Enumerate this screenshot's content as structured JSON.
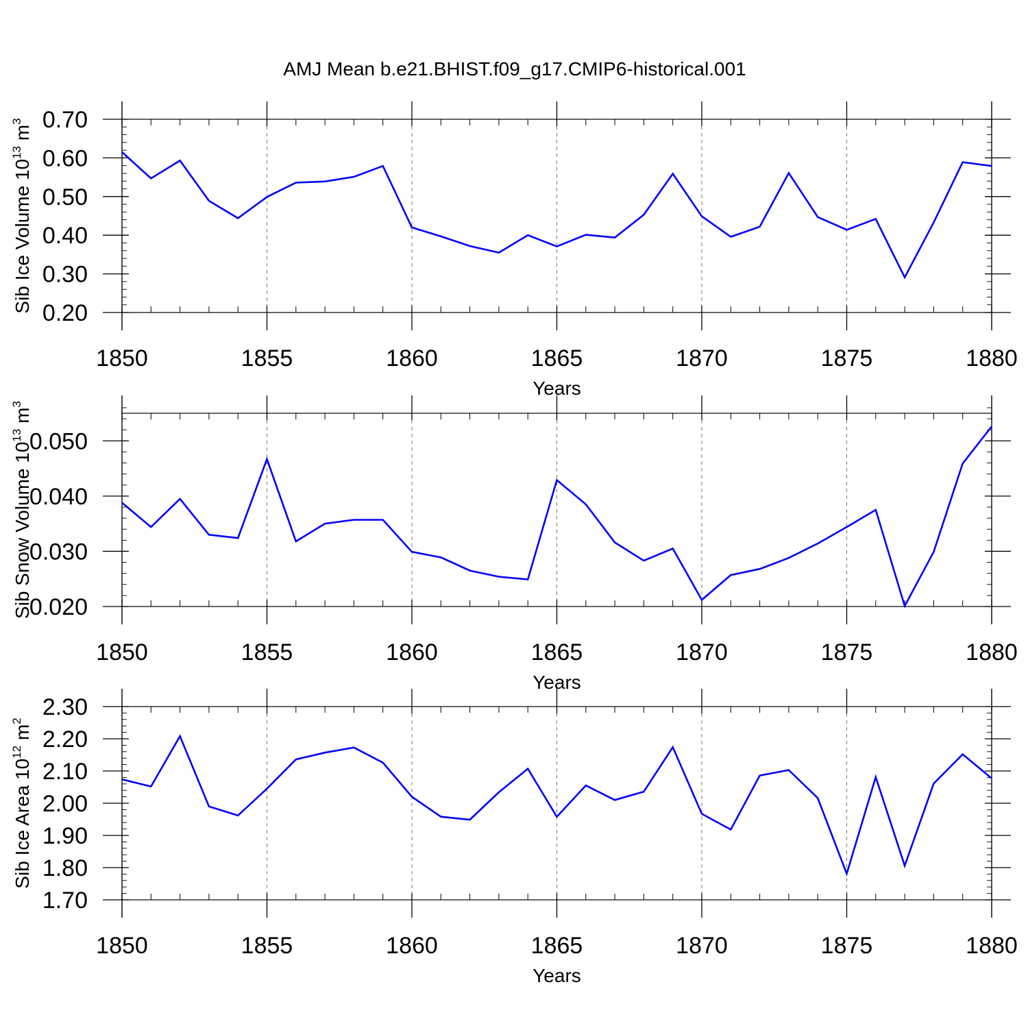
{
  "chart_data": [
    {
      "type": "line",
      "title": "AMJ Mean b.e21.BHIST.f09_g17.CMIP6-historical.001",
      "ylabel": {
        "base": "Sib Ice Volume 10",
        "exponent": "13",
        "unit": "m",
        "unit_exponent": "3"
      },
      "xlabel": "Years",
      "xlim": [
        1850,
        1880
      ],
      "ylim": [
        0.2,
        0.7
      ],
      "grid": "dashed vertical at major x ticks",
      "x_ticks": [
        1850,
        1855,
        1860,
        1865,
        1870,
        1875,
        1880
      ],
      "x_tick_labels": [
        "1850",
        "1855",
        "1860",
        "1865",
        "1870",
        "1875",
        "1880"
      ],
      "y_ticks": [
        0.2,
        0.3,
        0.4,
        0.5,
        0.6,
        0.7
      ],
      "y_tick_labels": [
        "0.20",
        "0.30",
        "0.40",
        "0.50",
        "0.60",
        "0.70"
      ],
      "y_minor_step": 0.02,
      "series": [
        {
          "name": "Sib Ice Volume",
          "color": "#0000ff",
          "x": [
            1850,
            1851,
            1852,
            1853,
            1854,
            1855,
            1856,
            1857,
            1858,
            1859,
            1860,
            1861,
            1862,
            1863,
            1864,
            1865,
            1866,
            1867,
            1868,
            1869,
            1870,
            1871,
            1872,
            1873,
            1874,
            1875,
            1876,
            1877,
            1878,
            1879,
            1880
          ],
          "values": [
            0.615,
            0.547,
            0.593,
            0.489,
            0.444,
            0.499,
            0.536,
            0.539,
            0.551,
            0.579,
            0.42,
            0.397,
            0.372,
            0.355,
            0.4,
            0.371,
            0.401,
            0.394,
            0.453,
            0.559,
            0.449,
            0.396,
            0.422,
            0.561,
            0.447,
            0.414,
            0.442,
            0.291,
            0.433,
            0.589,
            0.579
          ]
        }
      ]
    },
    {
      "type": "line",
      "ylabel": {
        "base": "Sib Snow Volume 10",
        "exponent": "13",
        "unit": "m",
        "unit_exponent": "3"
      },
      "xlabel": "Years",
      "xlim": [
        1850,
        1880
      ],
      "ylim": [
        0.02,
        0.055
      ],
      "grid": "dashed vertical at major x ticks",
      "x_ticks": [
        1850,
        1855,
        1860,
        1865,
        1870,
        1875,
        1880
      ],
      "x_tick_labels": [
        "1850",
        "1855",
        "1860",
        "1865",
        "1870",
        "1875",
        "1880"
      ],
      "y_ticks": [
        0.02,
        0.03,
        0.04,
        0.05
      ],
      "y_tick_labels": [
        "0.020",
        "0.030",
        "0.040",
        "0.050"
      ],
      "y_minor_step": 0.002,
      "series": [
        {
          "name": "Sib Snow Volume",
          "color": "#0000ff",
          "x": [
            1850,
            1851,
            1852,
            1853,
            1854,
            1855,
            1856,
            1857,
            1858,
            1859,
            1860,
            1861,
            1862,
            1863,
            1864,
            1865,
            1866,
            1867,
            1868,
            1869,
            1870,
            1871,
            1872,
            1873,
            1874,
            1875,
            1876,
            1877,
            1878,
            1879,
            1880
          ],
          "values": [
            0.0388,
            0.0344,
            0.0395,
            0.033,
            0.0324,
            0.0467,
            0.0318,
            0.035,
            0.0357,
            0.0357,
            0.0299,
            0.0289,
            0.0265,
            0.0254,
            0.0249,
            0.0429,
            0.0385,
            0.0316,
            0.0283,
            0.0305,
            0.0212,
            0.0257,
            0.0268,
            0.0288,
            0.0314,
            0.0344,
            0.0375,
            0.0201,
            0.0299,
            0.0459,
            0.0526
          ]
        }
      ]
    },
    {
      "type": "line",
      "ylabel": {
        "base": "Sib Ice Area 10",
        "exponent": "12",
        "unit": "m",
        "unit_exponent": "2"
      },
      "xlabel": "Years",
      "xlim": [
        1850,
        1880
      ],
      "ylim": [
        1.7,
        2.3
      ],
      "grid": "dashed vertical at major x ticks",
      "x_ticks": [
        1850,
        1855,
        1860,
        1865,
        1870,
        1875,
        1880
      ],
      "x_tick_labels": [
        "1850",
        "1855",
        "1860",
        "1865",
        "1870",
        "1875",
        "1880"
      ],
      "y_ticks": [
        1.7,
        1.8,
        1.9,
        2.0,
        2.1,
        2.2,
        2.3
      ],
      "y_tick_labels": [
        "1.70",
        "1.80",
        "1.90",
        "2.00",
        "2.10",
        "2.20",
        "2.30"
      ],
      "y_minor_step": 0.02,
      "series": [
        {
          "name": "Sib Ice Area",
          "color": "#0000ff",
          "x": [
            1850,
            1851,
            1852,
            1853,
            1854,
            1855,
            1856,
            1857,
            1858,
            1859,
            1860,
            1861,
            1862,
            1863,
            1864,
            1865,
            1866,
            1867,
            1868,
            1869,
            1870,
            1871,
            1872,
            1873,
            1874,
            1875,
            1876,
            1877,
            1878,
            1879,
            1880
          ],
          "values": [
            2.074,
            2.052,
            2.208,
            1.99,
            1.962,
            2.045,
            2.136,
            2.157,
            2.173,
            2.126,
            2.02,
            1.958,
            1.949,
            2.034,
            2.107,
            1.958,
            2.055,
            2.01,
            2.036,
            2.174,
            1.967,
            1.918,
            2.086,
            2.103,
            2.016,
            1.781,
            2.081,
            1.806,
            2.061,
            2.152,
            2.077
          ]
        }
      ]
    }
  ]
}
